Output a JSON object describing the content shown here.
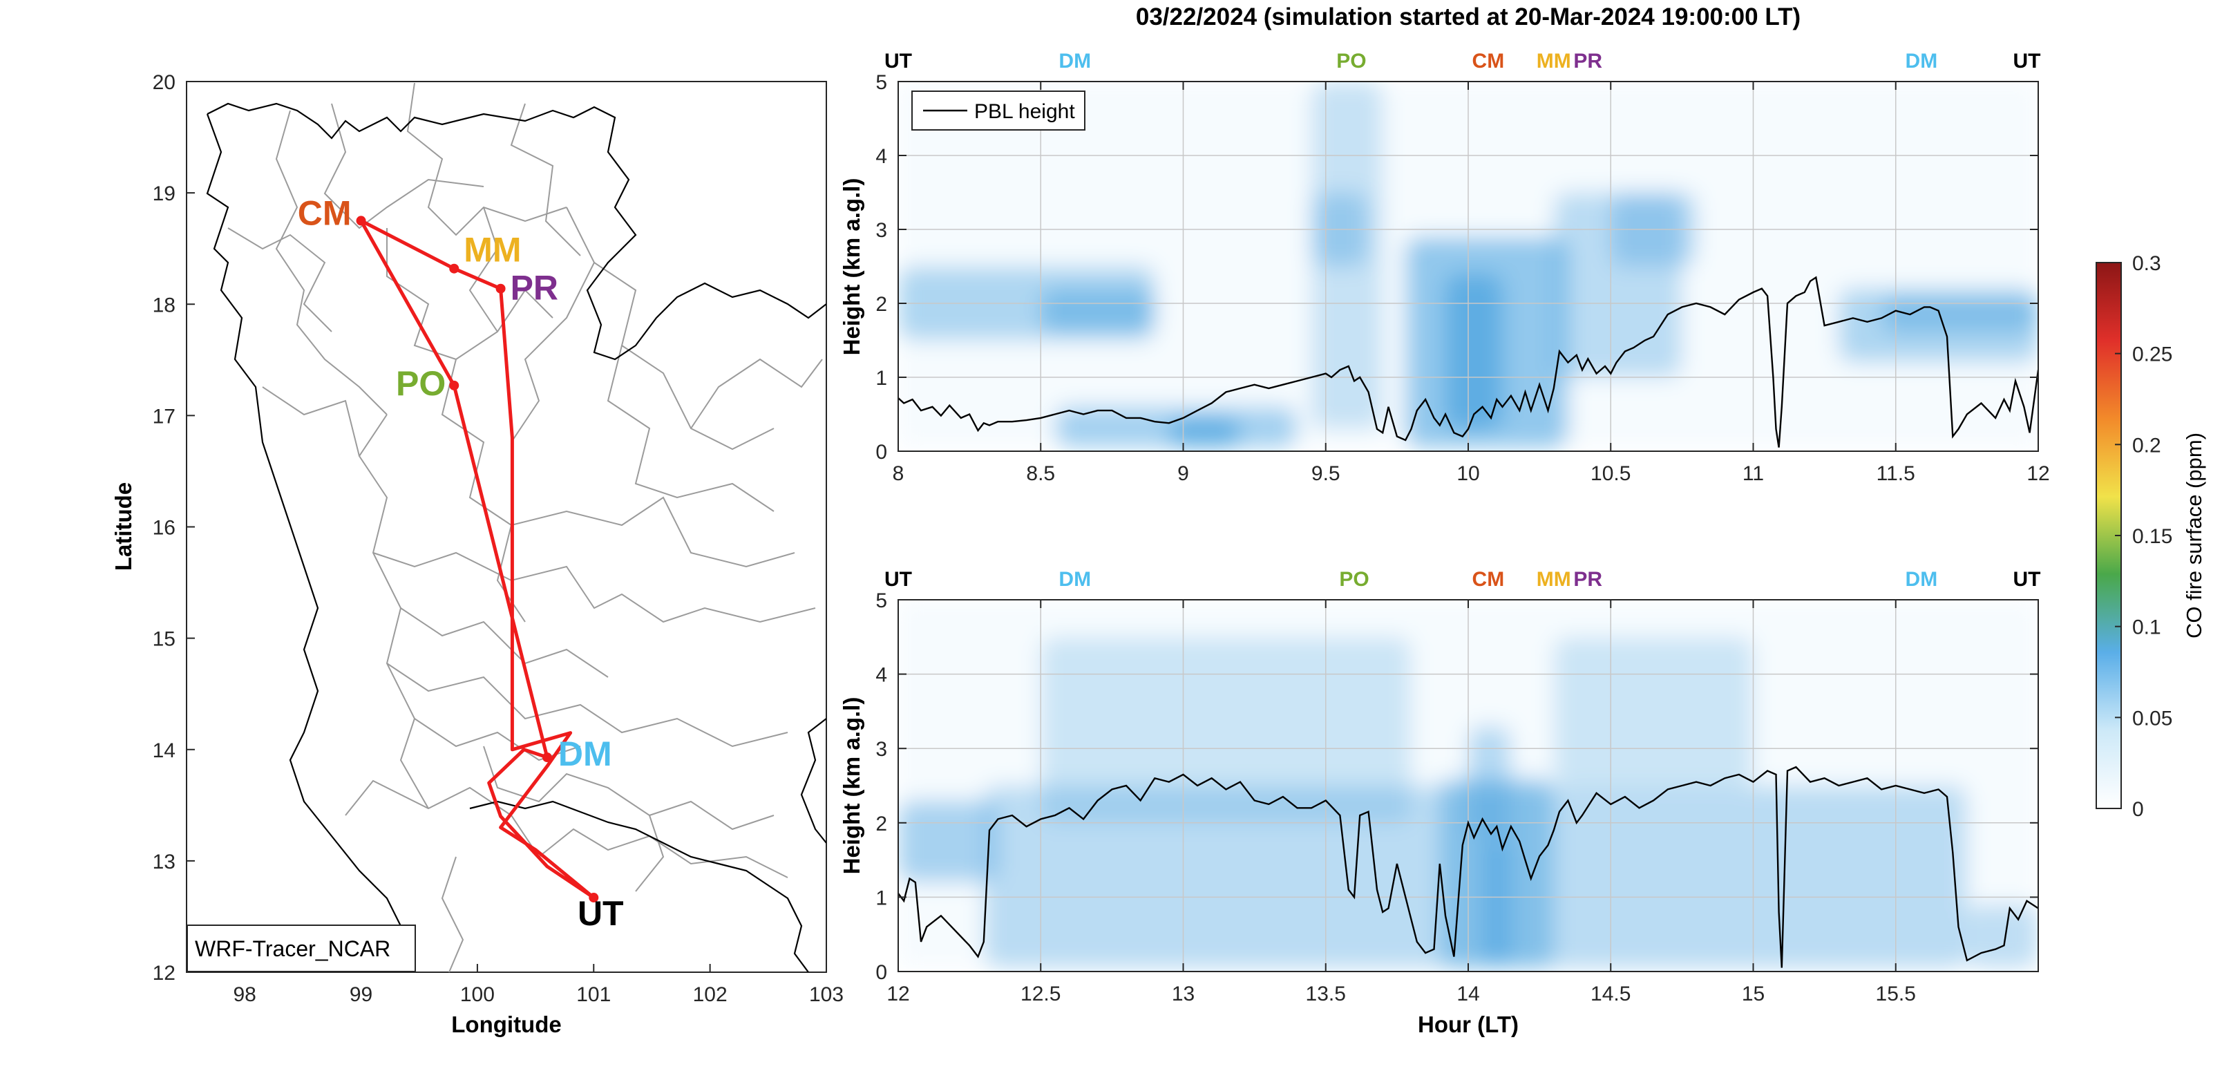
{
  "figure": {
    "title": "03/22/2024 (simulation started at 20-Mar-2024 19:00:00 LT)"
  },
  "colors": {
    "route": "#ee1c1c",
    "CM": "#d95319",
    "MM": "#edb120",
    "PR": "#7e2f8e",
    "PO": "#77ac30",
    "DM": "#4dbeee",
    "UT": "#000000",
    "pbl_line": "#000000",
    "boundary": "#9b9b9b",
    "coast": "#000000"
  },
  "chart_data": [
    {
      "type": "map",
      "panel": "route-map",
      "xlabel": "Longitude",
      "ylabel": "Latitude",
      "xlim": [
        97.5,
        103
      ],
      "ylim": [
        12,
        20
      ],
      "xticks": [
        98,
        99,
        100,
        101,
        102,
        103
      ],
      "yticks": [
        12,
        13,
        14,
        15,
        16,
        17,
        18,
        19,
        20
      ],
      "box_label": "WRF-Tracer_NCAR",
      "stations": [
        {
          "code": "CM",
          "lon": 99.0,
          "lat": 18.75
        },
        {
          "code": "MM",
          "lon": 99.8,
          "lat": 18.32
        },
        {
          "code": "PR",
          "lon": 100.2,
          "lat": 18.14
        },
        {
          "code": "PO",
          "lon": 99.8,
          "lat": 17.27
        },
        {
          "code": "DM",
          "lon": 100.6,
          "lat": 13.93
        },
        {
          "code": "UT",
          "lon": 101.0,
          "lat": 12.67
        }
      ],
      "route": [
        [
          101.0,
          12.67
        ],
        [
          100.6,
          12.95
        ],
        [
          100.2,
          13.4
        ],
        [
          100.1,
          13.7
        ],
        [
          100.4,
          14.0
        ],
        [
          100.6,
          13.93
        ],
        [
          99.8,
          17.27
        ],
        [
          99.0,
          18.75
        ],
        [
          99.8,
          18.32
        ],
        [
          100.2,
          18.14
        ],
        [
          100.3,
          16.8
        ],
        [
          100.3,
          14.0
        ],
        [
          100.8,
          14.15
        ],
        [
          100.6,
          13.85
        ],
        [
          100.2,
          13.3
        ],
        [
          100.5,
          13.1
        ],
        [
          101.0,
          12.67
        ]
      ]
    },
    {
      "type": "heatmap",
      "panel": "curtain-top",
      "ylabel": "Height (km a.g.l)",
      "xlim": [
        8,
        12
      ],
      "ylim": [
        0,
        5
      ],
      "xticks": [
        8,
        8.5,
        9,
        9.5,
        10,
        10.5,
        11,
        11.5,
        12
      ],
      "xtick_labels": [
        "8",
        "8.5",
        "9",
        "9.5",
        "10",
        "10.5",
        "11",
        "11.5",
        "12"
      ],
      "yticks": [
        0,
        1,
        2,
        3,
        4,
        5
      ],
      "legend": "PBL height",
      "station_markers": [
        {
          "code": "UT",
          "x": 8.0
        },
        {
          "code": "DM",
          "x": 8.62
        },
        {
          "code": "PO",
          "x": 9.59
        },
        {
          "code": "CM",
          "x": 10.07
        },
        {
          "code": "MM",
          "x": 10.3
        },
        {
          "code": "PR",
          "x": 10.42
        },
        {
          "code": "DM",
          "x": 11.59
        },
        {
          "code": "UT",
          "x": 11.96
        }
      ],
      "co_plumes": [
        {
          "x": [
            8.0,
            8.9
          ],
          "z": [
            1.5,
            2.5
          ],
          "value": 0.035
        },
        {
          "x": [
            8.5,
            8.9
          ],
          "z": [
            1.6,
            2.2
          ],
          "value": 0.045
        },
        {
          "x": [
            8.55,
            9.4
          ],
          "z": [
            0.05,
            0.6
          ],
          "value": 0.045
        },
        {
          "x": [
            8.95,
            9.2
          ],
          "z": [
            0.05,
            0.45
          ],
          "value": 0.08
        },
        {
          "x": [
            9.45,
            9.7
          ],
          "z": [
            0.3,
            5.0
          ],
          "value": 0.015
        },
        {
          "x": [
            9.45,
            9.65
          ],
          "z": [
            2.5,
            3.5
          ],
          "value": 0.03
        },
        {
          "x": [
            9.78,
            10.35
          ],
          "z": [
            0.05,
            2.9
          ],
          "value": 0.06
        },
        {
          "x": [
            9.92,
            10.12
          ],
          "z": [
            0.3,
            2.4
          ],
          "value": 0.075
        },
        {
          "x": [
            10.3,
            10.75
          ],
          "z": [
            1.0,
            3.5
          ],
          "value": 0.025
        },
        {
          "x": [
            10.5,
            10.8
          ],
          "z": [
            2.5,
            3.5
          ],
          "value": 0.03
        },
        {
          "x": [
            11.3,
            12.0
          ],
          "z": [
            1.2,
            2.2
          ],
          "value": 0.035
        },
        {
          "x": [
            11.45,
            12.0
          ],
          "z": [
            1.6,
            2.1
          ],
          "value": 0.04
        }
      ],
      "pbl_x": [
        8.0,
        8.02,
        8.05,
        8.08,
        8.12,
        8.15,
        8.18,
        8.22,
        8.25,
        8.28,
        8.3,
        8.32,
        8.35,
        8.4,
        8.45,
        8.5,
        8.55,
        8.6,
        8.65,
        8.7,
        8.75,
        8.8,
        8.85,
        8.9,
        8.95,
        9.0,
        9.05,
        9.1,
        9.15,
        9.2,
        9.25,
        9.3,
        9.35,
        9.4,
        9.45,
        9.5,
        9.52,
        9.55,
        9.58,
        9.6,
        9.62,
        9.65,
        9.68,
        9.7,
        9.72,
        9.75,
        9.78,
        9.8,
        9.82,
        9.85,
        9.88,
        9.9,
        9.92,
        9.95,
        9.98,
        10.0,
        10.02,
        10.05,
        10.08,
        10.1,
        10.12,
        10.15,
        10.18,
        10.2,
        10.22,
        10.25,
        10.28,
        10.3,
        10.32,
        10.35,
        10.38,
        10.4,
        10.42,
        10.45,
        10.48,
        10.5,
        10.52,
        10.55,
        10.58,
        10.6,
        10.62,
        10.65,
        10.7,
        10.75,
        10.8,
        10.85,
        10.9,
        10.95,
        11.0,
        11.03,
        11.05,
        11.07,
        11.08,
        11.09,
        11.1,
        11.12,
        11.15,
        11.18,
        11.2,
        11.22,
        11.25,
        11.3,
        11.35,
        11.4,
        11.45,
        11.5,
        11.55,
        11.6,
        11.62,
        11.65,
        11.68,
        11.7,
        11.72,
        11.75,
        11.8,
        11.85,
        11.88,
        11.9,
        11.92,
        11.95,
        11.97,
        12.0
      ],
      "pbl_y": [
        0.72,
        0.65,
        0.7,
        0.55,
        0.6,
        0.48,
        0.62,
        0.45,
        0.5,
        0.28,
        0.38,
        0.35,
        0.4,
        0.4,
        0.42,
        0.45,
        0.5,
        0.55,
        0.5,
        0.55,
        0.55,
        0.45,
        0.45,
        0.4,
        0.38,
        0.45,
        0.55,
        0.65,
        0.8,
        0.85,
        0.9,
        0.85,
        0.9,
        0.95,
        1.0,
        1.05,
        1.0,
        1.1,
        1.15,
        0.95,
        1.0,
        0.8,
        0.3,
        0.25,
        0.6,
        0.2,
        0.15,
        0.3,
        0.55,
        0.7,
        0.45,
        0.35,
        0.5,
        0.25,
        0.2,
        0.3,
        0.5,
        0.6,
        0.45,
        0.7,
        0.6,
        0.75,
        0.55,
        0.8,
        0.55,
        0.9,
        0.55,
        0.85,
        1.35,
        1.2,
        1.3,
        1.1,
        1.25,
        1.05,
        1.15,
        1.05,
        1.2,
        1.35,
        1.4,
        1.45,
        1.5,
        1.55,
        1.85,
        1.95,
        2.0,
        1.95,
        1.85,
        2.05,
        2.15,
        2.2,
        2.1,
        1.0,
        0.3,
        0.05,
        0.6,
        2.0,
        2.1,
        2.15,
        2.3,
        2.35,
        1.7,
        1.75,
        1.8,
        1.75,
        1.8,
        1.9,
        1.85,
        1.95,
        1.95,
        1.9,
        1.55,
        0.2,
        0.3,
        0.5,
        0.65,
        0.45,
        0.7,
        0.55,
        0.95,
        0.6,
        0.25,
        1.1
      ]
    },
    {
      "type": "heatmap",
      "panel": "curtain-bottom",
      "xlabel": "Hour (LT)",
      "ylabel": "Height (km a.g.l)",
      "xlim": [
        12,
        16
      ],
      "ylim": [
        0,
        5
      ],
      "xticks": [
        12,
        12.5,
        13,
        13.5,
        14,
        14.5,
        15,
        15.5
      ],
      "xtick_labels": [
        "12",
        "12.5",
        "13",
        "13.5",
        "14",
        "14.5",
        "15",
        "15.5"
      ],
      "yticks": [
        0,
        1,
        2,
        3,
        4,
        5
      ],
      "station_markers": [
        {
          "code": "UT",
          "x": 12.0
        },
        {
          "code": "DM",
          "x": 12.62
        },
        {
          "code": "PO",
          "x": 13.6
        },
        {
          "code": "CM",
          "x": 14.07
        },
        {
          "code": "MM",
          "x": 14.3
        },
        {
          "code": "PR",
          "x": 14.42
        },
        {
          "code": "DM",
          "x": 15.59
        },
        {
          "code": "UT",
          "x": 15.96
        }
      ],
      "co_plumes": [
        {
          "x": [
            12.0,
            12.35
          ],
          "z": [
            1.2,
            2.3
          ],
          "value": 0.04
        },
        {
          "x": [
            12.3,
            15.75
          ],
          "z": [
            0.05,
            2.5
          ],
          "value": 0.025
        },
        {
          "x": [
            13.9,
            14.3
          ],
          "z": [
            0.05,
            2.6
          ],
          "value": 0.045
        },
        {
          "x": [
            14.0,
            14.15
          ],
          "z": [
            1.8,
            3.3
          ],
          "value": 0.03
        },
        {
          "x": [
            14.05,
            14.15
          ],
          "z": [
            0.1,
            1.8
          ],
          "value": 0.055
        },
        {
          "x": [
            12.5,
            13.8
          ],
          "z": [
            2.0,
            4.5
          ],
          "value": 0.01
        },
        {
          "x": [
            14.3,
            15.0
          ],
          "z": [
            2.5,
            4.5
          ],
          "value": 0.01
        },
        {
          "x": [
            15.75,
            16.0
          ],
          "z": [
            0.05,
            0.9
          ],
          "value": 0.02
        }
      ],
      "pbl_x": [
        12.0,
        12.02,
        12.04,
        12.06,
        12.08,
        12.1,
        12.15,
        12.2,
        12.25,
        12.28,
        12.3,
        12.32,
        12.35,
        12.4,
        12.45,
        12.5,
        12.55,
        12.6,
        12.65,
        12.7,
        12.75,
        12.8,
        12.85,
        12.9,
        12.95,
        13.0,
        13.05,
        13.1,
        13.15,
        13.2,
        13.25,
        13.3,
        13.35,
        13.4,
        13.45,
        13.5,
        13.55,
        13.58,
        13.6,
        13.62,
        13.65,
        13.68,
        13.7,
        13.72,
        13.75,
        13.8,
        13.82,
        13.85,
        13.88,
        13.9,
        13.92,
        13.95,
        13.98,
        14.0,
        14.02,
        14.05,
        14.08,
        14.1,
        14.12,
        14.15,
        14.18,
        14.2,
        14.22,
        14.25,
        14.28,
        14.3,
        14.32,
        14.35,
        14.38,
        14.4,
        14.45,
        14.5,
        14.55,
        14.6,
        14.65,
        14.7,
        14.75,
        14.8,
        14.85,
        14.9,
        14.95,
        15.0,
        15.05,
        15.08,
        15.09,
        15.1,
        15.12,
        15.15,
        15.2,
        15.25,
        15.3,
        15.35,
        15.4,
        15.45,
        15.5,
        15.55,
        15.6,
        15.65,
        15.68,
        15.7,
        15.72,
        15.75,
        15.8,
        15.85,
        15.88,
        15.9,
        15.93,
        15.96,
        16.0
      ],
      "pbl_y": [
        1.05,
        0.95,
        1.25,
        1.2,
        0.4,
        0.6,
        0.75,
        0.55,
        0.35,
        0.2,
        0.4,
        1.9,
        2.05,
        2.1,
        1.95,
        2.05,
        2.1,
        2.2,
        2.05,
        2.3,
        2.45,
        2.5,
        2.3,
        2.6,
        2.55,
        2.65,
        2.5,
        2.6,
        2.45,
        2.55,
        2.3,
        2.25,
        2.35,
        2.2,
        2.2,
        2.3,
        2.1,
        1.1,
        1.0,
        2.1,
        2.15,
        1.1,
        0.8,
        0.85,
        1.45,
        0.7,
        0.4,
        0.25,
        0.3,
        1.45,
        0.75,
        0.2,
        1.7,
        2.0,
        1.8,
        2.05,
        1.85,
        1.95,
        1.65,
        1.95,
        1.75,
        1.5,
        1.25,
        1.55,
        1.7,
        1.9,
        2.15,
        2.3,
        2.0,
        2.1,
        2.4,
        2.25,
        2.35,
        2.2,
        2.3,
        2.45,
        2.5,
        2.55,
        2.5,
        2.6,
        2.65,
        2.55,
        2.7,
        2.65,
        0.8,
        0.05,
        2.7,
        2.75,
        2.55,
        2.6,
        2.5,
        2.55,
        2.6,
        2.45,
        2.5,
        2.45,
        2.4,
        2.45,
        2.35,
        1.6,
        0.6,
        0.15,
        0.25,
        0.3,
        0.35,
        0.85,
        0.7,
        0.95,
        0.85
      ]
    },
    {
      "type": "colorbar",
      "panel": "colorbar",
      "label": "CO fire surface (ppm)",
      "range": [
        0,
        0.3
      ],
      "ticks": [
        0,
        0.05,
        0.1,
        0.15,
        0.2,
        0.25,
        0.3
      ],
      "tick_labels": [
        "0",
        "0.05",
        "0.1",
        "0.15",
        "0.2",
        "0.25",
        "0.3"
      ],
      "stops": [
        "#ffffff",
        "#cde9f8",
        "#5aaee8",
        "#4aa84a",
        "#f1e24a",
        "#f28a2a",
        "#e0302a",
        "#8c1616"
      ]
    }
  ]
}
